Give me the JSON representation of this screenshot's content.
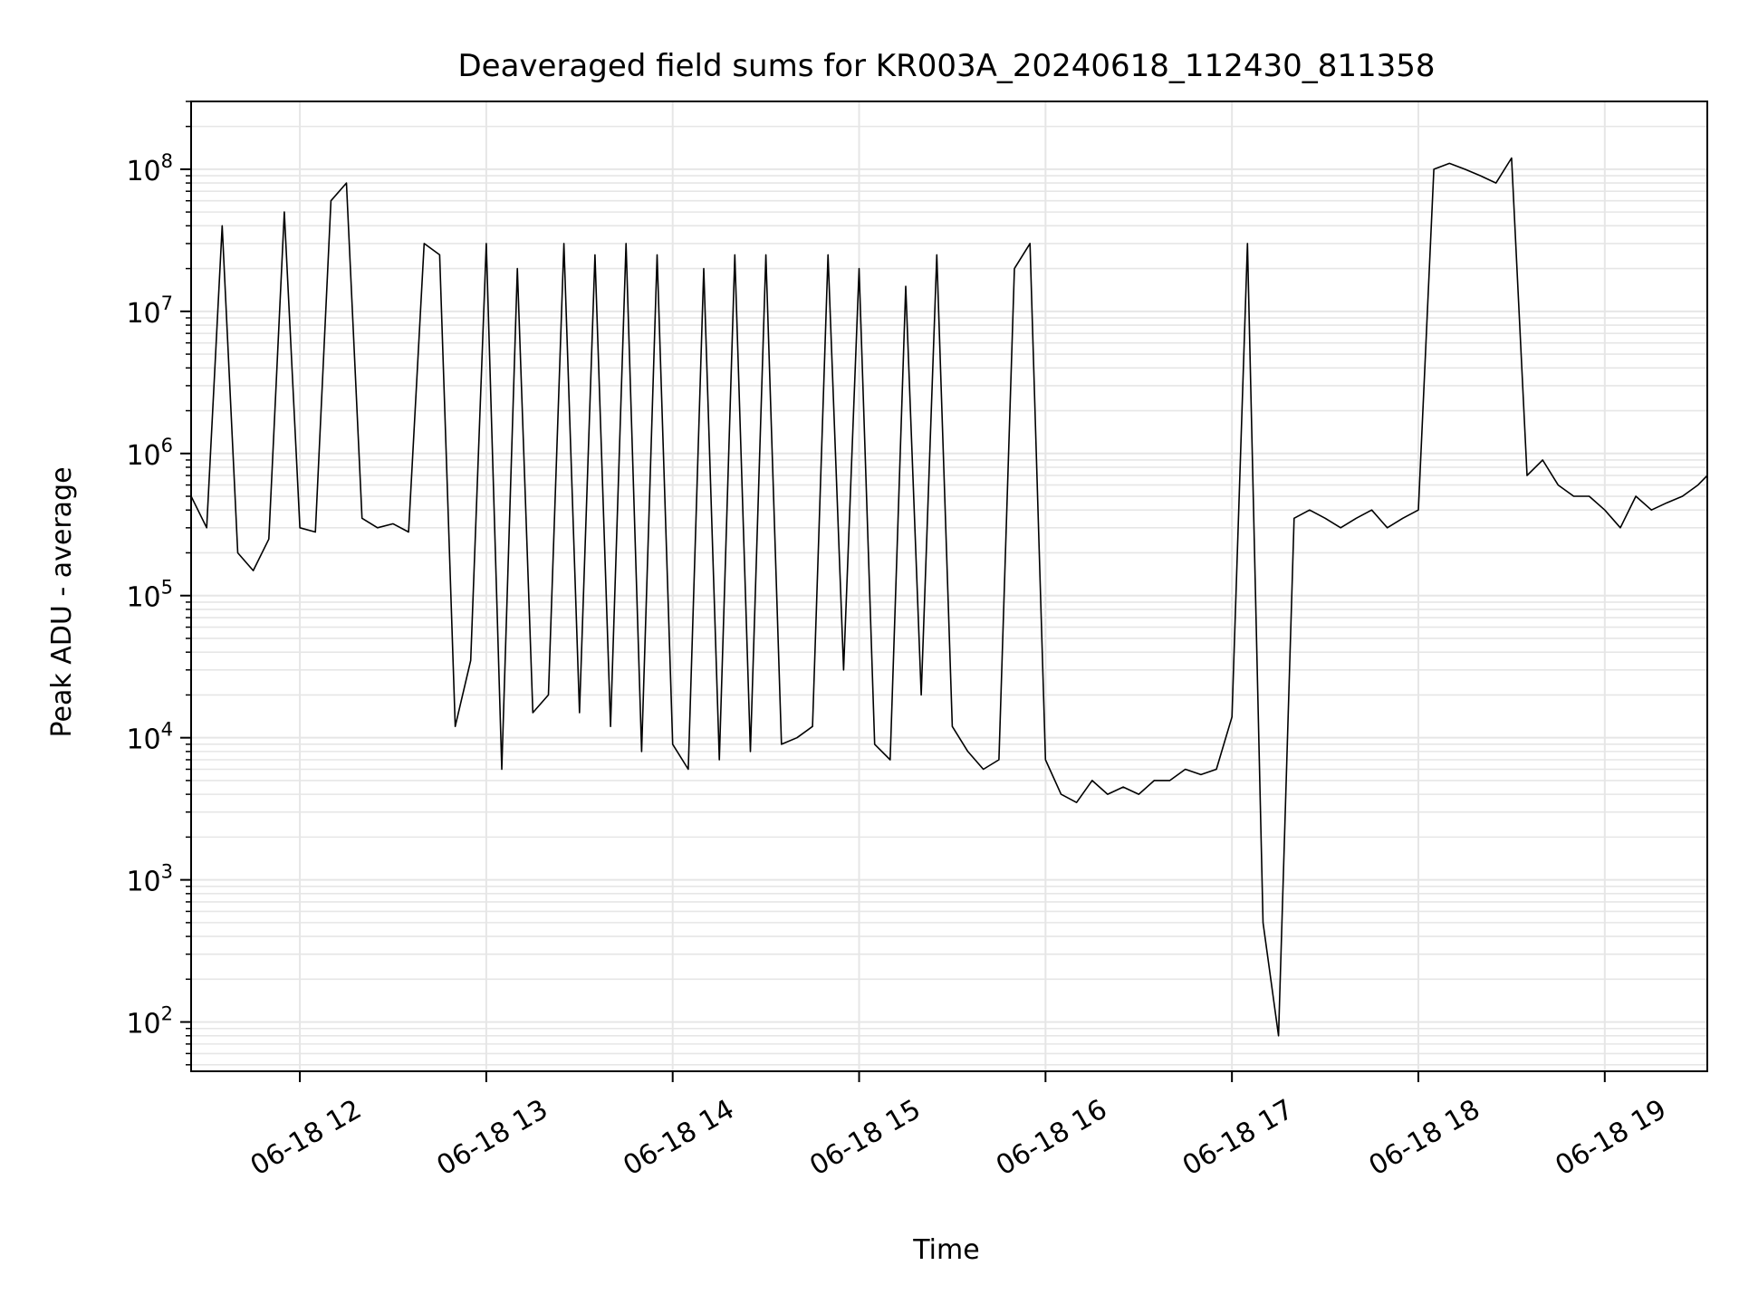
{
  "chart_data": {
    "type": "line",
    "title": "Deaveraged field sums for KR003A_20240618_112430_811358",
    "xlabel": "Time",
    "ylabel": "Peak ADU - average",
    "yscale": "log",
    "xlim": [
      "06-18 11:25",
      "06-18 19:33"
    ],
    "ylim": [
      45,
      300000000
    ],
    "grid": true,
    "line_color": "#000000",
    "grid_color": "#e6e6e6",
    "x_ticks": [
      "06-18 12",
      "06-18 13",
      "06-18 14",
      "06-18 15",
      "06-18 16",
      "06-18 17",
      "06-18 18",
      "06-18 19"
    ],
    "x_tick_times": [
      "06-18 12:00",
      "06-18 13:00",
      "06-18 14:00",
      "06-18 15:00",
      "06-18 16:00",
      "06-18 17:00",
      "06-18 18:00",
      "06-18 19:00"
    ],
    "y_ticks": [
      {
        "base": "10",
        "exp": "2",
        "value": 100
      },
      {
        "base": "10",
        "exp": "3",
        "value": 1000
      },
      {
        "base": "10",
        "exp": "4",
        "value": 10000
      },
      {
        "base": "10",
        "exp": "5",
        "value": 100000
      },
      {
        "base": "10",
        "exp": "6",
        "value": 1000000
      },
      {
        "base": "10",
        "exp": "7",
        "value": 10000000
      },
      {
        "base": "10",
        "exp": "8",
        "value": 100000000
      }
    ],
    "series": [
      {
        "x": [
          "06-18 11:25",
          "06-18 11:30",
          "06-18 11:35",
          "06-18 11:40",
          "06-18 11:45",
          "06-18 11:50",
          "06-18 11:55",
          "06-18 12:00",
          "06-18 12:05",
          "06-18 12:10",
          "06-18 12:15",
          "06-18 12:20",
          "06-18 12:25",
          "06-18 12:30",
          "06-18 12:35",
          "06-18 12:40",
          "06-18 12:45",
          "06-18 12:50",
          "06-18 12:55",
          "06-18 13:00",
          "06-18 13:05",
          "06-18 13:10",
          "06-18 13:15",
          "06-18 13:20",
          "06-18 13:25",
          "06-18 13:30",
          "06-18 13:35",
          "06-18 13:40",
          "06-18 13:45",
          "06-18 13:50",
          "06-18 13:55",
          "06-18 14:00",
          "06-18 14:05",
          "06-18 14:10",
          "06-18 14:15",
          "06-18 14:20",
          "06-18 14:25",
          "06-18 14:30",
          "06-18 14:35",
          "06-18 14:40",
          "06-18 14:45",
          "06-18 14:50",
          "06-18 14:55",
          "06-18 15:00",
          "06-18 15:05",
          "06-18 15:10",
          "06-18 15:15",
          "06-18 15:20",
          "06-18 15:25",
          "06-18 15:30",
          "06-18 15:35",
          "06-18 15:40",
          "06-18 15:45",
          "06-18 15:50",
          "06-18 15:55",
          "06-18 16:00",
          "06-18 16:05",
          "06-18 16:10",
          "06-18 16:15",
          "06-18 16:20",
          "06-18 16:25",
          "06-18 16:30",
          "06-18 16:35",
          "06-18 16:40",
          "06-18 16:45",
          "06-18 16:50",
          "06-18 16:55",
          "06-18 17:00",
          "06-18 17:05",
          "06-18 17:10",
          "06-18 17:15",
          "06-18 17:20",
          "06-18 17:25",
          "06-18 17:30",
          "06-18 17:35",
          "06-18 17:40",
          "06-18 17:45",
          "06-18 17:50",
          "06-18 17:55",
          "06-18 18:00",
          "06-18 18:05",
          "06-18 18:10",
          "06-18 18:15",
          "06-18 18:20",
          "06-18 18:25",
          "06-18 18:30",
          "06-18 18:35",
          "06-18 18:40",
          "06-18 18:45",
          "06-18 18:50",
          "06-18 18:55",
          "06-18 19:00",
          "06-18 19:05",
          "06-18 19:10",
          "06-18 19:15",
          "06-18 19:20",
          "06-18 19:25",
          "06-18 19:30",
          "06-18 19:33"
        ],
        "y": [
          500000,
          300000,
          40000000,
          200000,
          150000,
          250000,
          50000000,
          300000,
          280000,
          60000000,
          80000000,
          350000,
          300000,
          320000,
          280000,
          30000000,
          25000000,
          12000,
          35000,
          30000000,
          6000,
          20000000,
          15000,
          20000,
          30000000,
          15000,
          25000000,
          12000,
          30000000,
          8000,
          25000000,
          9000,
          6000,
          20000000,
          7000,
          25000000,
          8000,
          25000000,
          9000,
          10000,
          12000,
          25000000,
          30000,
          20000000,
          9000,
          7000,
          15000000,
          20000,
          25000000,
          12000,
          8000,
          6000,
          7000,
          20000000,
          30000000,
          7000,
          4000,
          3500,
          5000,
          4000,
          4500,
          4000,
          5000,
          5000,
          6000,
          5500,
          6000,
          14000,
          30000000,
          500,
          80,
          350000,
          400000,
          350000,
          300000,
          350000,
          400000,
          300000,
          350000,
          400000,
          100000000,
          110000000,
          100000000,
          90000000,
          80000000,
          120000000,
          700000,
          900000,
          600000,
          500000,
          500000,
          400000,
          300000,
          500000,
          400000,
          450000,
          500000,
          600000,
          700000
        ]
      }
    ]
  }
}
